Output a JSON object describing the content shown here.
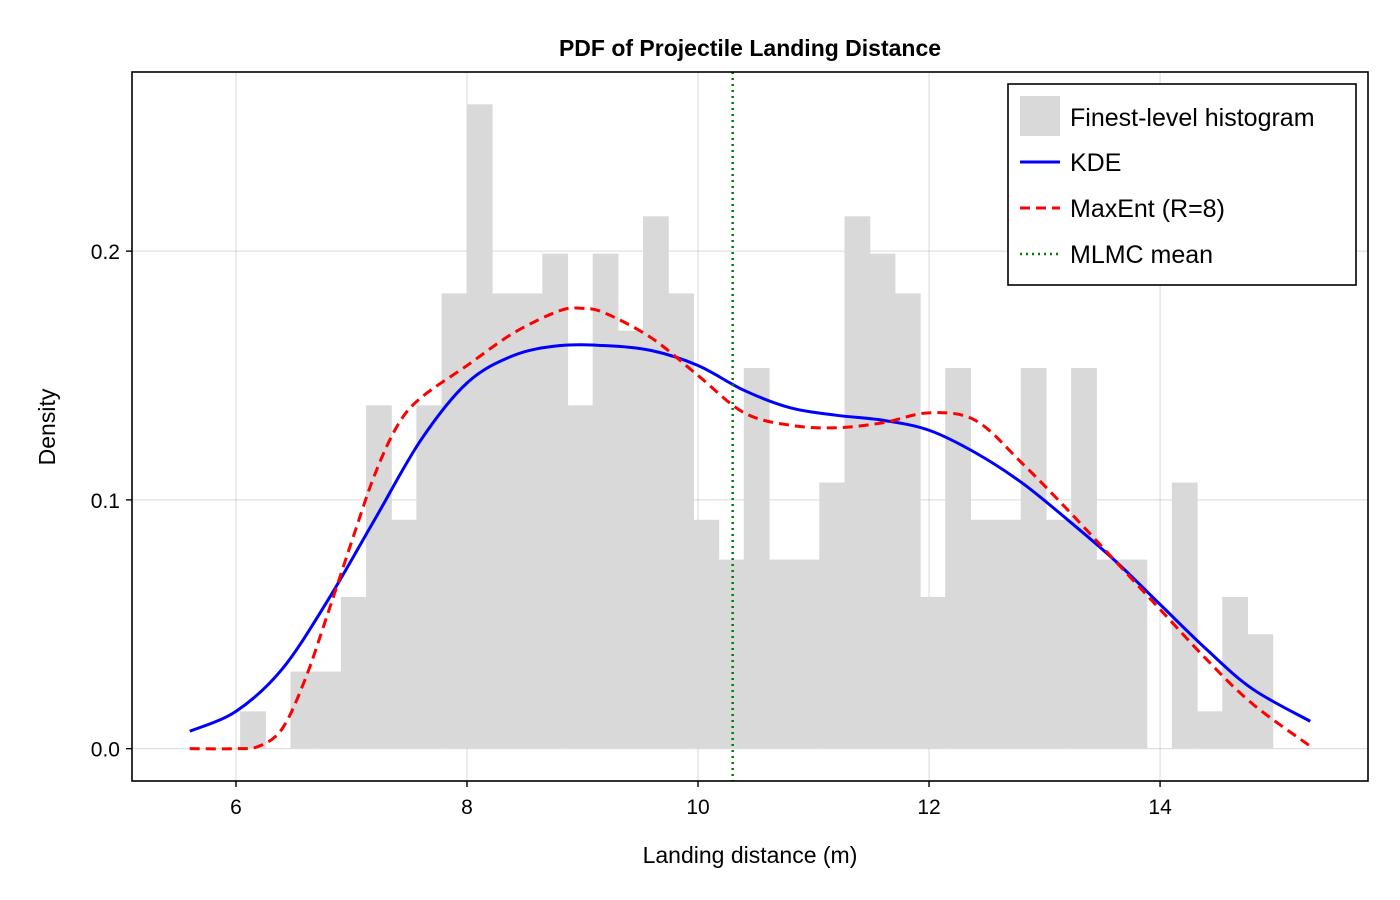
{
  "chart_data": {
    "type": "bar",
    "title": "PDF of Projectile Landing Distance",
    "xlabel": "Landing distance (m)",
    "ylabel": "Density",
    "xlim": [
      5.1,
      15.8
    ],
    "ylim": [
      -0.013,
      0.272
    ],
    "xticks": [
      6,
      8,
      10,
      12,
      14
    ],
    "yticks": [
      0.0,
      0.1,
      0.2
    ],
    "ytick_labels": [
      "0.0",
      "0.1",
      "0.2"
    ],
    "grid": true,
    "legend_position": "top-right",
    "histogram": {
      "name": "Finest-level histogram",
      "color": "#d9d9d9",
      "bin_start": 5.6,
      "bin_width": 0.218,
      "values": [
        0,
        0,
        0.015,
        0,
        0.031,
        0.031,
        0.061,
        0.138,
        0.092,
        0.138,
        0.183,
        0.259,
        0.183,
        0.183,
        0.199,
        0.138,
        0.199,
        0.168,
        0.214,
        0.183,
        0.092,
        0.076,
        0.153,
        0.076,
        0.076,
        0.107,
        0.214,
        0.199,
        0.183,
        0.061,
        0.153,
        0.092,
        0.092,
        0.153,
        0.092,
        0.153,
        0.076,
        0.076,
        0,
        0.107,
        0.015,
        0.061,
        0.046
      ]
    },
    "series": [
      {
        "name": "KDE",
        "color": "#0000ff",
        "style": "solid",
        "x": [
          5.6,
          6.0,
          6.4,
          6.8,
          7.2,
          7.6,
          8.0,
          8.4,
          8.8,
          9.2,
          9.6,
          10.0,
          10.4,
          10.8,
          11.2,
          11.6,
          12.0,
          12.4,
          12.8,
          13.2,
          13.6,
          14.0,
          14.4,
          14.8,
          15.3
        ],
        "y": [
          0.007,
          0.015,
          0.032,
          0.06,
          0.092,
          0.124,
          0.147,
          0.158,
          0.162,
          0.162,
          0.16,
          0.154,
          0.144,
          0.137,
          0.134,
          0.132,
          0.128,
          0.119,
          0.107,
          0.092,
          0.076,
          0.058,
          0.04,
          0.024,
          0.011
        ]
      },
      {
        "name": "MaxEnt (R=8)",
        "color": "#ff0000",
        "style": "dashed",
        "x": [
          5.6,
          6.0,
          6.2,
          6.4,
          6.6,
          6.8,
          7.0,
          7.2,
          7.4,
          7.6,
          8.0,
          8.4,
          8.8,
          9.0,
          9.2,
          9.6,
          10.0,
          10.4,
          10.8,
          11.2,
          11.6,
          12.0,
          12.4,
          12.8,
          13.2,
          13.6,
          14.0,
          14.4,
          14.8,
          15.3
        ],
        "y": [
          0.0,
          0.0,
          0.001,
          0.008,
          0.028,
          0.055,
          0.083,
          0.11,
          0.13,
          0.141,
          0.154,
          0.167,
          0.176,
          0.177,
          0.175,
          0.165,
          0.15,
          0.135,
          0.13,
          0.129,
          0.131,
          0.135,
          0.132,
          0.115,
          0.096,
          0.076,
          0.056,
          0.036,
          0.018,
          0.001
        ]
      }
    ],
    "reference_lines": [
      {
        "name": "MLMC mean",
        "x": 10.3,
        "color": "#008000",
        "style": "dotted"
      }
    ],
    "legend": [
      "Finest-level histogram",
      "KDE",
      "MaxEnt (R=8)",
      "MLMC mean"
    ]
  }
}
